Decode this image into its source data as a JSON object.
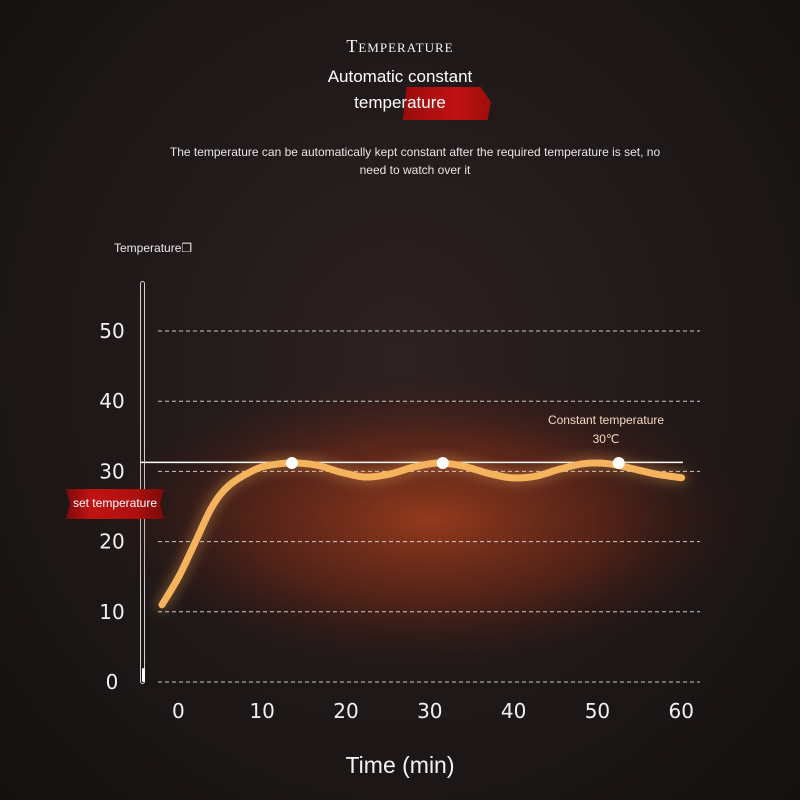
{
  "header": {
    "title": "Temperature",
    "subtitle_line1": "Automatic constant",
    "subtitle_line2": "temperature",
    "description": "The temperature can be automatically kept constant after the required temperature is set, no need to watch over it"
  },
  "set_temperature_label": "set temperature",
  "colors": {
    "curve": "#f6b35e",
    "accent_red": "#c01212",
    "grid": "#e8e8e8",
    "glow": "#b0401a"
  },
  "chart_data": {
    "type": "line",
    "title": "",
    "ylabel": "Temperature❒",
    "xlabel": "Time (min)",
    "x_ticks": [
      0,
      10,
      20,
      30,
      40,
      50,
      60
    ],
    "y_ticks": [
      0,
      10,
      20,
      30,
      40,
      50
    ],
    "xlim": [
      -1,
      62
    ],
    "ylim": [
      0,
      50
    ],
    "grid": "horizontal-dashed",
    "set_temperature": 30,
    "annotation": {
      "line1": "Constant temperature",
      "line2": "30℃"
    },
    "series": [
      {
        "x": [
          -1,
          1,
          3,
          5,
          7,
          10,
          12,
          14.5,
          17.4,
          20.3,
          23.2,
          26.1,
          29,
          31.9,
          34.8,
          37.7,
          40.6,
          43.5,
          46.4,
          49.3,
          52.2,
          55.1,
          58,
          61
        ],
        "y": [
          11,
          15,
          20,
          25,
          28,
          30.2,
          30.9,
          31.2,
          30.9,
          29.9,
          29.2,
          29.6,
          30.6,
          31.2,
          30.8,
          29.8,
          29.1,
          29.3,
          30.3,
          31.1,
          31.1,
          30.4,
          29.6,
          29.1
        ]
      }
    ],
    "highlight_points": [
      {
        "x": 14.5,
        "y": 31.2
      },
      {
        "x": 32.5,
        "y": 31.2
      },
      {
        "x": 53.5,
        "y": 31.2
      }
    ]
  }
}
